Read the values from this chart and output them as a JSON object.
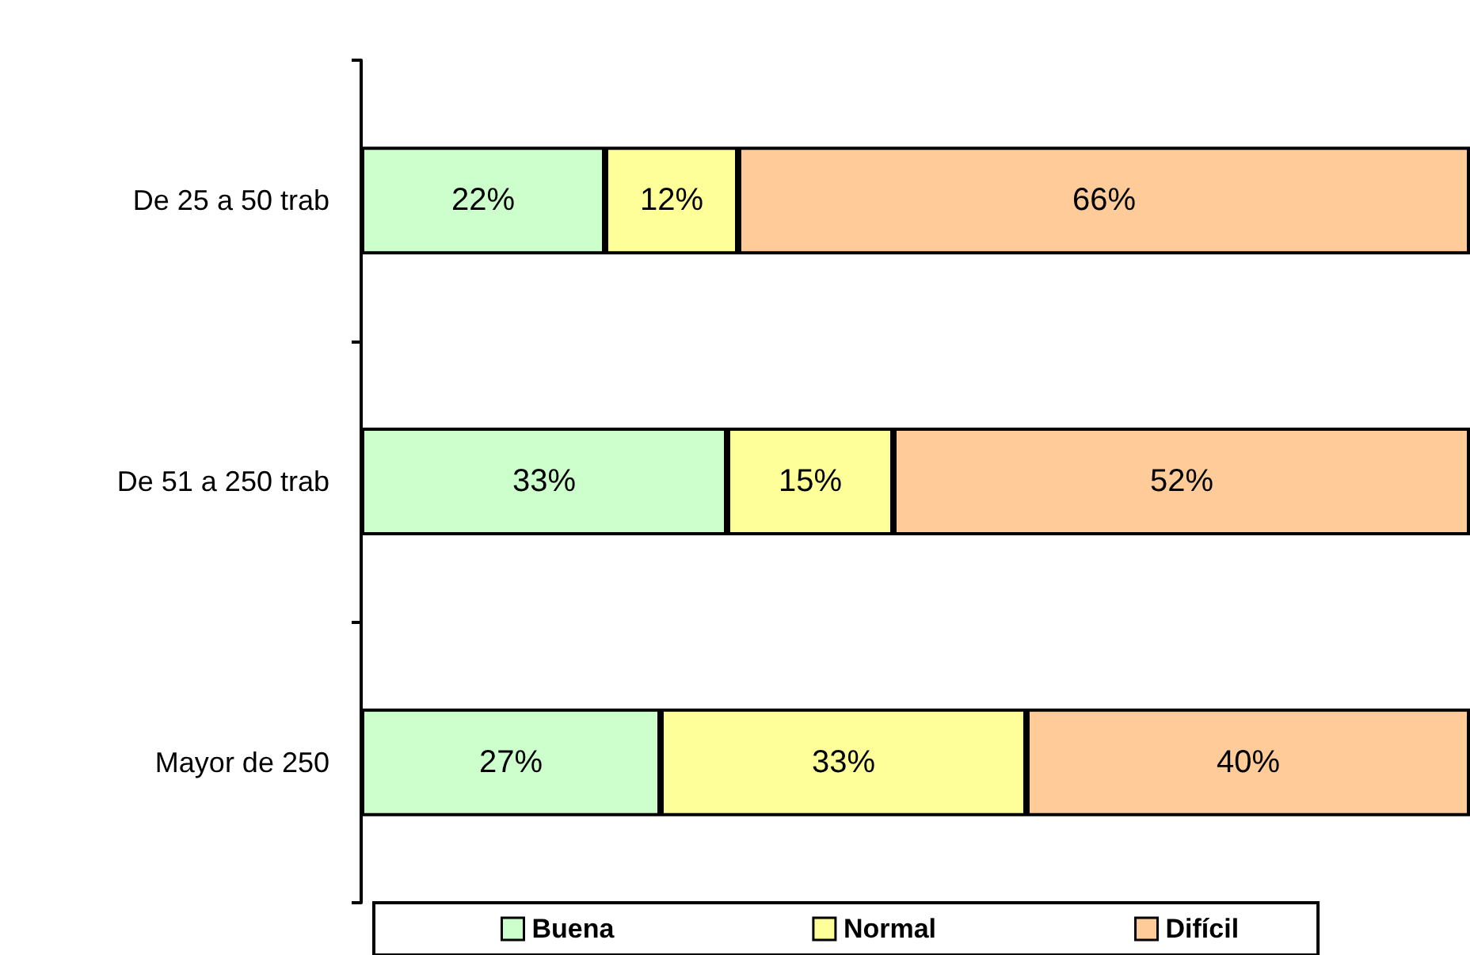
{
  "chart_data": {
    "type": "bar",
    "orientation": "horizontal",
    "stacked": true,
    "categories": [
      "De 25 a 50 trab",
      "De 51 a 250 trab",
      "Mayor de 250"
    ],
    "series": [
      {
        "name": "Buena",
        "color": "#ccffcc",
        "values": [
          22,
          33,
          27
        ],
        "value_labels": [
          "22%",
          "33%",
          "27%"
        ]
      },
      {
        "name": "Normal",
        "color": "#ffff99",
        "values": [
          12,
          15,
          33
        ],
        "value_labels": [
          "12%",
          "15%",
          "33%"
        ]
      },
      {
        "name": "Difícil",
        "color": "#ffcc99",
        "values": [
          66,
          52,
          40
        ],
        "value_labels": [
          "66%",
          "52%",
          "40%"
        ]
      }
    ],
    "xlim": [
      0,
      100
    ],
    "legend": "bottom",
    "grid": false,
    "tick_labels": "y"
  }
}
